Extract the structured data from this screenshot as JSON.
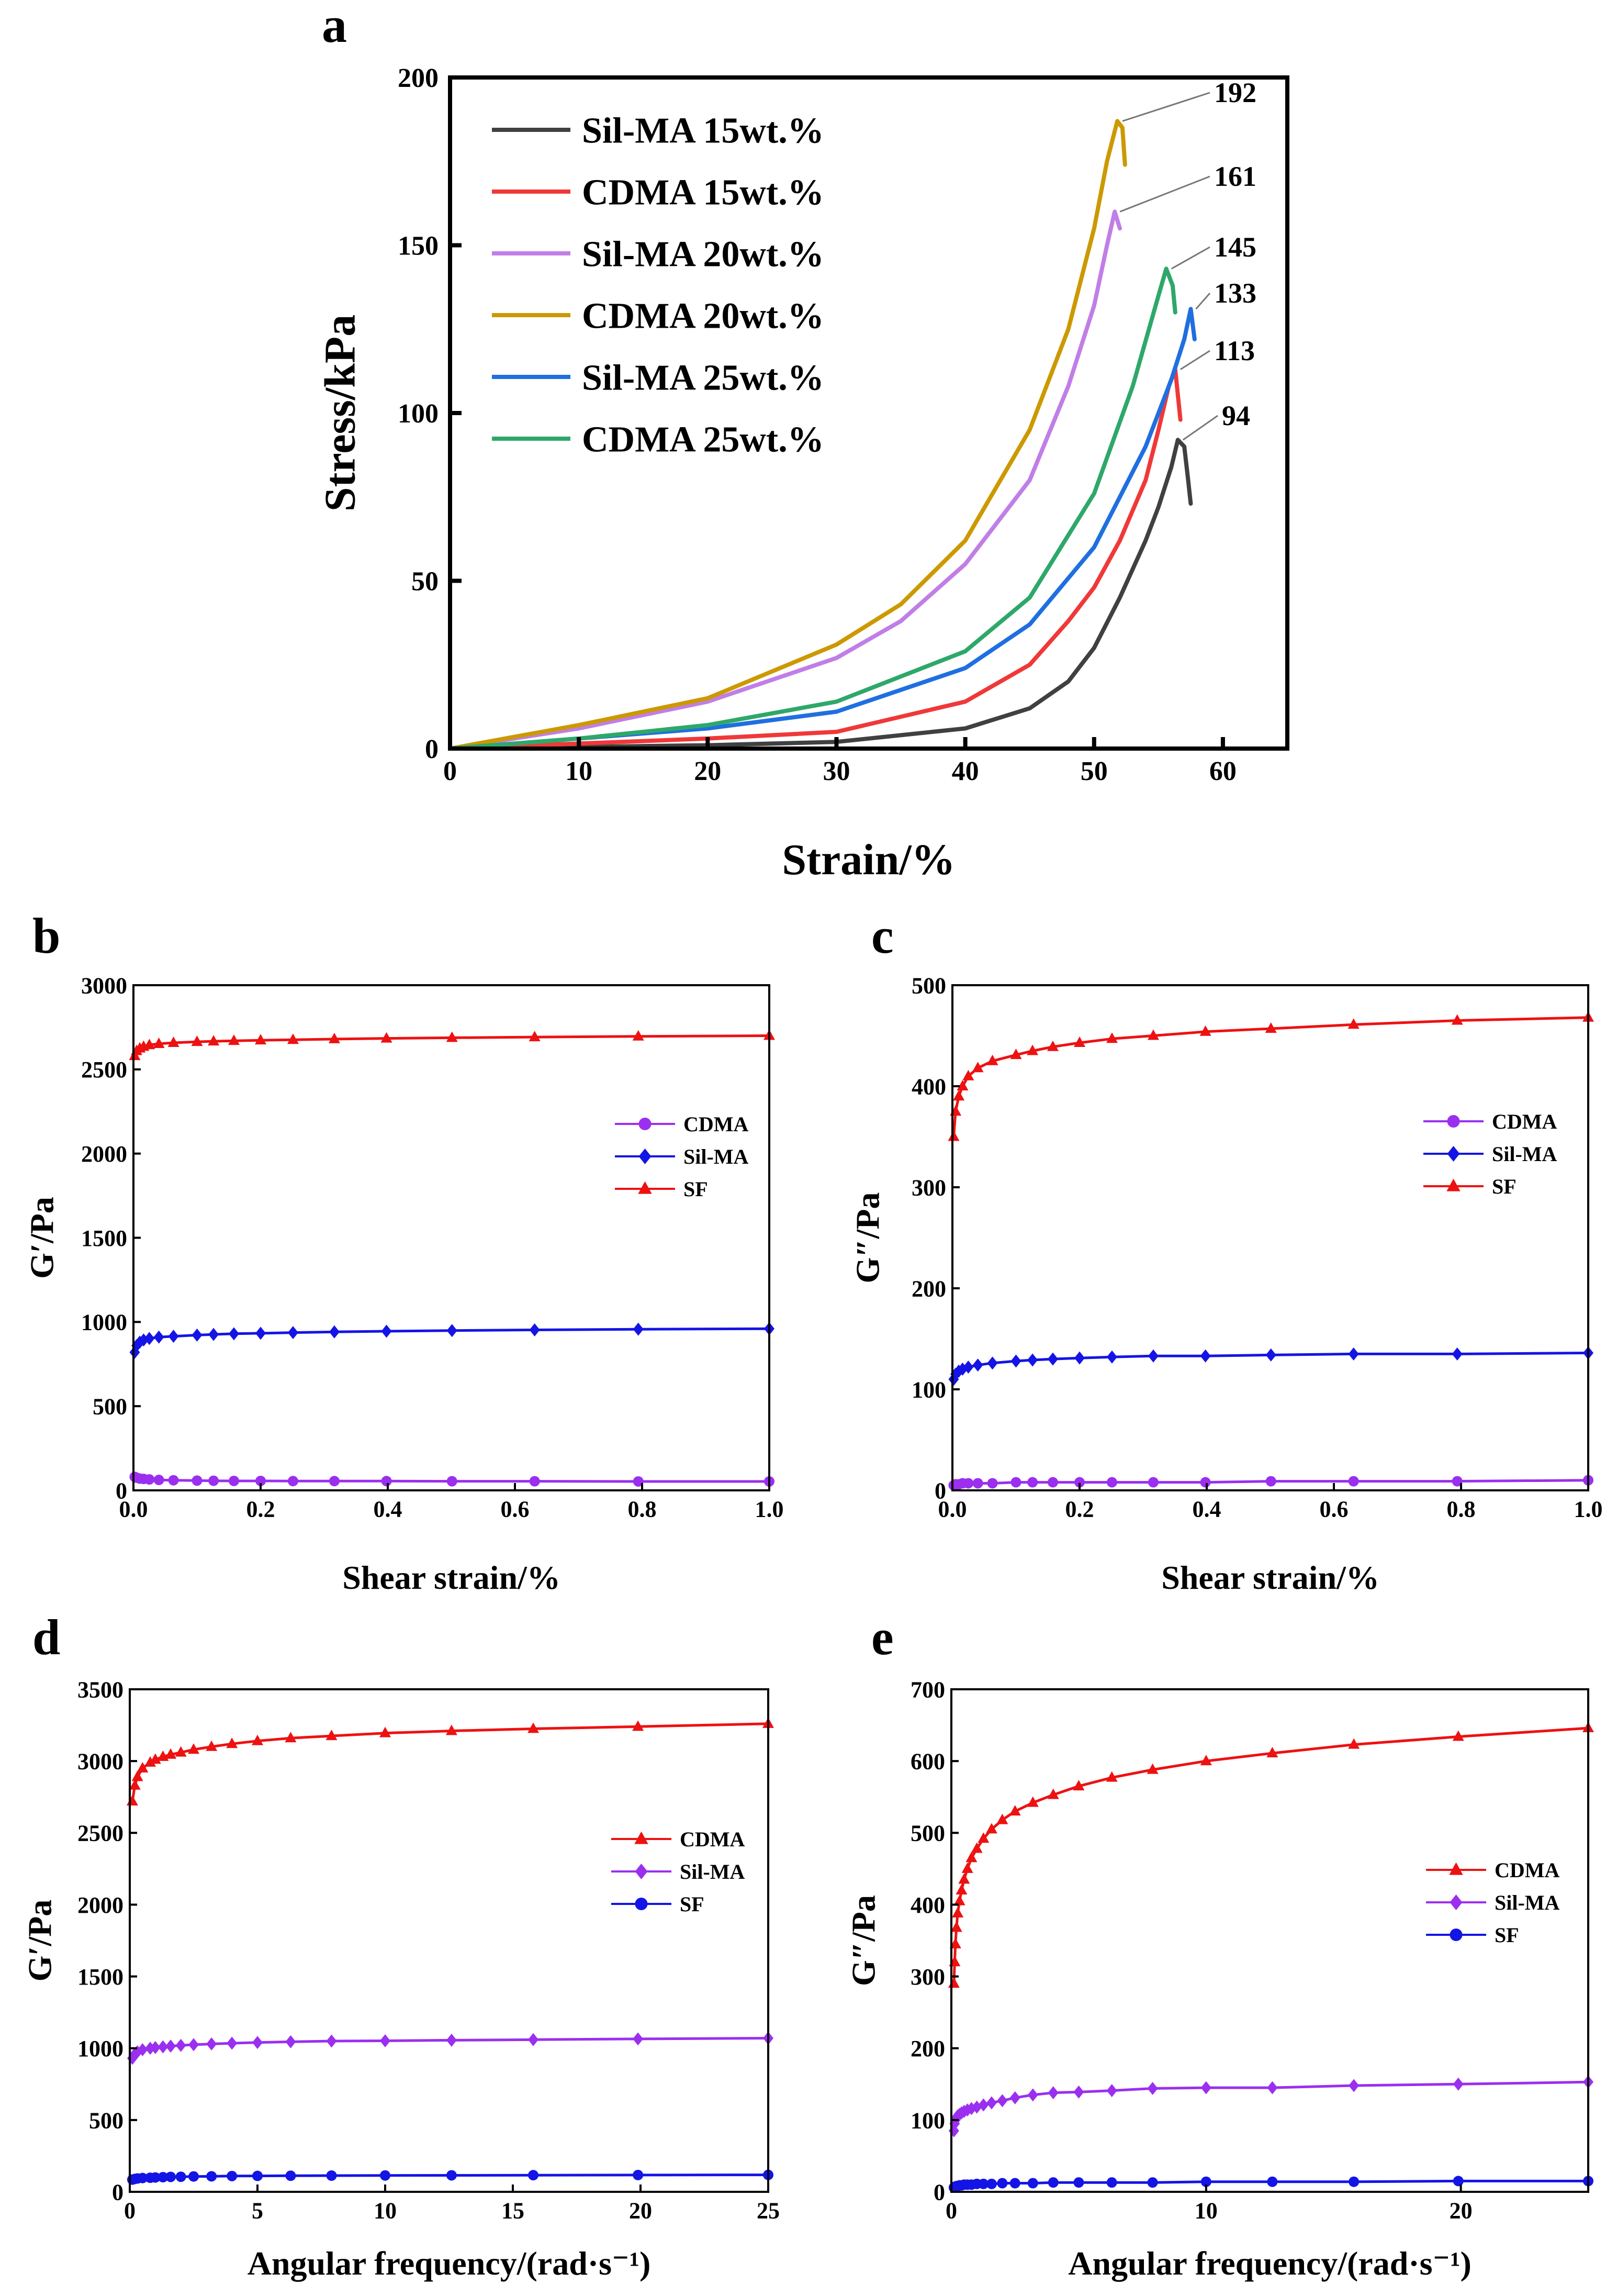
{
  "chart_data": [
    {
      "id": "a",
      "panel_label": "a",
      "type": "line",
      "title": "",
      "xlabel": "Strain/%",
      "ylabel": "Stress/kPa",
      "xlim": [
        0,
        65
      ],
      "ylim": [
        0,
        200
      ],
      "xticks": [
        0,
        10,
        20,
        30,
        40,
        50,
        60
      ],
      "yticks": [
        0,
        50,
        100,
        150,
        200
      ],
      "grid": false,
      "legend_position": "top-left",
      "series": [
        {
          "name": "Sil-MA 15wt.%",
          "color": "#404040",
          "peak": 94,
          "x": [
            0,
            10,
            20,
            30,
            40,
            45,
            48,
            50,
            52,
            54,
            55,
            56,
            56.5,
            57,
            57.3,
            57.5
          ],
          "y": [
            0,
            0.5,
            1,
            2,
            6,
            12,
            20,
            30,
            45,
            62,
            72,
            84,
            92,
            90,
            80,
            73
          ]
        },
        {
          "name": "CDMA 15wt.%",
          "color": "#f03838",
          "peak": 113,
          "x": [
            0,
            10,
            20,
            30,
            40,
            45,
            48,
            50,
            52,
            54,
            55,
            55.8,
            56.3,
            56.7
          ],
          "y": [
            0,
            1.5,
            3,
            5,
            14,
            25,
            38,
            48,
            62,
            80,
            95,
            108,
            113,
            98
          ]
        },
        {
          "name": "Sil-MA 20wt.%",
          "color": "#c07ee6",
          "peak": 161,
          "x": [
            0,
            10,
            20,
            30,
            35,
            40,
            45,
            48,
            50,
            51,
            51.6,
            52
          ],
          "y": [
            0,
            6,
            14,
            27,
            38,
            55,
            80,
            108,
            132,
            150,
            160,
            155
          ]
        },
        {
          "name": "CDMA  20wt.%",
          "color": "#cc9900",
          "peak": 192,
          "x": [
            0,
            10,
            20,
            30,
            35,
            40,
            45,
            48,
            50,
            51,
            51.8,
            52.2,
            52.4
          ],
          "y": [
            0,
            7,
            15,
            31,
            43,
            62,
            95,
            125,
            155,
            175,
            187,
            185,
            174
          ]
        },
        {
          "name": "Sil-MA 25wt.%",
          "color": "#1f6fe0",
          "peak": 133,
          "x": [
            0,
            10,
            20,
            30,
            40,
            45,
            50,
            54,
            56,
            57,
            57.5,
            57.8
          ],
          "y": [
            0,
            3,
            6,
            11,
            24,
            37,
            60,
            90,
            110,
            122,
            131,
            122
          ]
        },
        {
          "name": "CDMA  25wt.%",
          "color": "#2ea86a",
          "peak": 145,
          "x": [
            0,
            10,
            20,
            30,
            40,
            45,
            50,
            53,
            55,
            55.6,
            56.1,
            56.3
          ],
          "y": [
            0,
            3,
            7,
            14,
            29,
            45,
            76,
            108,
            135,
            143,
            138,
            130
          ]
        }
      ]
    },
    {
      "id": "b",
      "panel_label": "b",
      "type": "line",
      "title": "",
      "xlabel": "Shear strain/%",
      "ylabel": "G′/Pa",
      "xlim": [
        0,
        1
      ],
      "ylim": [
        0,
        3000
      ],
      "xticks": [
        0.0,
        0.2,
        0.4,
        0.6,
        0.8,
        1.0
      ],
      "yticks": [
        0,
        500,
        1000,
        1500,
        2000,
        2500,
        3000
      ],
      "grid": false,
      "legend_position": "center-right",
      "series": [
        {
          "name": "CDMA",
          "color": "#9b2ff0",
          "marker": "circle",
          "x": [
            0.002,
            0.005,
            0.01,
            0.016,
            0.025,
            0.04,
            0.063,
            0.1,
            0.126,
            0.158,
            0.2,
            0.251,
            0.316,
            0.398,
            0.501,
            0.631,
            0.794,
            1.0
          ],
          "y": [
            80,
            75,
            70,
            68,
            65,
            62,
            60,
            58,
            57,
            56,
            56,
            55,
            55,
            55,
            54,
            54,
            53,
            53
          ]
        },
        {
          "name": "Sil-MA",
          "color": "#1414e6",
          "marker": "diamond",
          "x": [
            0.002,
            0.005,
            0.01,
            0.016,
            0.025,
            0.04,
            0.063,
            0.1,
            0.126,
            0.158,
            0.2,
            0.251,
            0.316,
            0.398,
            0.501,
            0.631,
            0.794,
            1.0
          ],
          "y": [
            820,
            860,
            880,
            893,
            902,
            910,
            915,
            922,
            926,
            930,
            933,
            937,
            941,
            945,
            949,
            953,
            957,
            960
          ]
        },
        {
          "name": "SF",
          "color": "#ee1111",
          "marker": "triangle",
          "x": [
            0.002,
            0.005,
            0.01,
            0.016,
            0.025,
            0.04,
            0.063,
            0.1,
            0.126,
            0.158,
            0.2,
            0.251,
            0.316,
            0.398,
            0.501,
            0.631,
            0.794,
            1.0
          ],
          "y": [
            2580,
            2610,
            2625,
            2635,
            2645,
            2652,
            2658,
            2664,
            2667,
            2670,
            2673,
            2676,
            2680,
            2684,
            2688,
            2692,
            2696,
            2700
          ]
        }
      ]
    },
    {
      "id": "c",
      "panel_label": "c",
      "type": "line",
      "title": "",
      "xlabel": "Shear strain/%",
      "ylabel": "G″/Pa",
      "xlim": [
        0,
        1
      ],
      "ylim": [
        0,
        500
      ],
      "xticks": [
        0.0,
        0.2,
        0.4,
        0.6,
        0.8,
        1.0
      ],
      "yticks": [
        0,
        100,
        200,
        300,
        400,
        500
      ],
      "grid": false,
      "legend_position": "center-right",
      "series": [
        {
          "name": "CDMA",
          "color": "#9b2ff0",
          "marker": "circle",
          "x": [
            0.002,
            0.005,
            0.01,
            0.016,
            0.025,
            0.04,
            0.063,
            0.1,
            0.126,
            0.158,
            0.2,
            0.251,
            0.316,
            0.398,
            0.501,
            0.631,
            0.794,
            1.0
          ],
          "y": [
            5,
            6,
            6,
            7,
            7,
            7,
            7,
            8,
            8,
            8,
            8,
            8,
            8,
            8,
            9,
            9,
            9,
            10
          ]
        },
        {
          "name": "Sil-MA",
          "color": "#1414e6",
          "marker": "diamond",
          "x": [
            0.002,
            0.005,
            0.01,
            0.016,
            0.025,
            0.04,
            0.063,
            0.1,
            0.126,
            0.158,
            0.2,
            0.251,
            0.316,
            0.398,
            0.501,
            0.631,
            0.794,
            1.0
          ],
          "y": [
            110,
            115,
            118,
            120,
            122,
            124,
            126,
            128,
            129,
            130,
            131,
            132,
            133,
            133,
            134,
            135,
            135,
            136
          ]
        },
        {
          "name": "SF",
          "color": "#ee1111",
          "marker": "triangle",
          "x": [
            0.002,
            0.005,
            0.01,
            0.016,
            0.025,
            0.04,
            0.063,
            0.1,
            0.126,
            0.158,
            0.2,
            0.251,
            0.316,
            0.398,
            0.501,
            0.631,
            0.794,
            1.0
          ],
          "y": [
            350,
            375,
            390,
            400,
            410,
            418,
            425,
            431,
            435,
            439,
            443,
            447,
            450,
            454,
            457,
            461,
            465,
            468
          ]
        }
      ]
    },
    {
      "id": "d",
      "panel_label": "d",
      "type": "line",
      "title": "",
      "xlabel": "Angular frequency/(rad·s⁻¹)",
      "ylabel": "G′/Pa",
      "xlim": [
        0,
        25
      ],
      "ylim": [
        0,
        3500
      ],
      "xticks": [
        0,
        5,
        10,
        15,
        20,
        25
      ],
      "yticks": [
        0,
        500,
        1000,
        1500,
        2000,
        2500,
        3000,
        3500
      ],
      "grid": false,
      "legend_position": "center-right",
      "series": [
        {
          "name": "CDMA",
          "color": "#ee1111",
          "marker": "triangle",
          "x": [
            0.1,
            0.2,
            0.3,
            0.5,
            0.8,
            1.0,
            1.3,
            1.6,
            2.0,
            2.5,
            3.2,
            4.0,
            5.0,
            6.3,
            7.9,
            10,
            12.6,
            15.8,
            19.9,
            25
          ],
          "y": [
            2720,
            2830,
            2890,
            2950,
            2990,
            3010,
            3030,
            3045,
            3060,
            3080,
            3100,
            3120,
            3140,
            3160,
            3175,
            3195,
            3210,
            3225,
            3240,
            3260
          ]
        },
        {
          "name": "Sil-MA",
          "color": "#9b2ff0",
          "marker": "diamond",
          "x": [
            0.1,
            0.2,
            0.3,
            0.5,
            0.8,
            1.0,
            1.3,
            1.6,
            2.0,
            2.5,
            3.2,
            4.0,
            5.0,
            6.3,
            7.9,
            10,
            12.6,
            15.8,
            19.9,
            25
          ],
          "y": [
            930,
            960,
            975,
            990,
            1000,
            1005,
            1010,
            1015,
            1020,
            1025,
            1030,
            1035,
            1040,
            1045,
            1050,
            1052,
            1056,
            1060,
            1065,
            1070
          ]
        },
        {
          "name": "SF",
          "color": "#1414e6",
          "marker": "circle",
          "x": [
            0.1,
            0.2,
            0.3,
            0.5,
            0.8,
            1.0,
            1.3,
            1.6,
            2.0,
            2.5,
            3.2,
            4.0,
            5.0,
            6.3,
            7.9,
            10,
            12.6,
            15.8,
            19.9,
            25
          ],
          "y": [
            85,
            90,
            93,
            96,
            98,
            100,
            102,
            104,
            105,
            107,
            108,
            110,
            111,
            112,
            113,
            114,
            115,
            116,
            117,
            118
          ]
        }
      ]
    },
    {
      "id": "e",
      "panel_label": "e",
      "type": "line",
      "title": "",
      "xlabel": "Angular frequency/(rad·s⁻¹)",
      "ylabel": "G″/Pa",
      "xlim": [
        0,
        25
      ],
      "ylim": [
        0,
        700
      ],
      "xticks": [
        0,
        10,
        20
      ],
      "yticks": [
        0,
        100,
        200,
        300,
        400,
        500,
        600,
        700
      ],
      "grid": false,
      "legend_position": "center-right",
      "series": [
        {
          "name": "CDMA",
          "color": "#ee1111",
          "marker": "triangle",
          "x": [
            0.1,
            0.13,
            0.16,
            0.2,
            0.25,
            0.32,
            0.4,
            0.5,
            0.63,
            0.79,
            1.0,
            1.26,
            1.58,
            2.0,
            2.5,
            3.2,
            4.0,
            5.0,
            6.3,
            7.9,
            10,
            12.6,
            15.8,
            19.9,
            25
          ],
          "y": [
            290,
            320,
            345,
            368,
            388,
            405,
            420,
            435,
            450,
            465,
            478,
            492,
            505,
            518,
            530,
            542,
            553,
            565,
            577,
            588,
            600,
            611,
            623,
            634,
            646
          ]
        },
        {
          "name": "Sil-MA",
          "color": "#9b2ff0",
          "marker": "diamond",
          "x": [
            0.1,
            0.13,
            0.16,
            0.2,
            0.25,
            0.32,
            0.4,
            0.5,
            0.63,
            0.79,
            1.0,
            1.26,
            1.58,
            2.0,
            2.5,
            3.2,
            4.0,
            5.0,
            6.3,
            7.9,
            10,
            12.6,
            15.8,
            19.9,
            25
          ],
          "y": [
            85,
            95,
            100,
            103,
            106,
            108,
            110,
            112,
            114,
            116,
            118,
            121,
            124,
            127,
            131,
            135,
            138,
            139,
            141,
            144,
            145,
            145,
            148,
            150,
            153
          ]
        },
        {
          "name": "SF",
          "color": "#1414e6",
          "marker": "circle",
          "x": [
            0.1,
            0.13,
            0.16,
            0.2,
            0.25,
            0.32,
            0.4,
            0.5,
            0.63,
            0.79,
            1.0,
            1.26,
            1.58,
            2.0,
            2.5,
            3.2,
            4.0,
            5.0,
            6.3,
            7.9,
            10,
            12.6,
            15.8,
            19.9,
            25
          ],
          "y": [
            6,
            7,
            7,
            8,
            8,
            9,
            9,
            10,
            10,
            10,
            11,
            11,
            11,
            12,
            12,
            12,
            13,
            13,
            13,
            13,
            14,
            14,
            14,
            15,
            15
          ]
        }
      ]
    }
  ]
}
